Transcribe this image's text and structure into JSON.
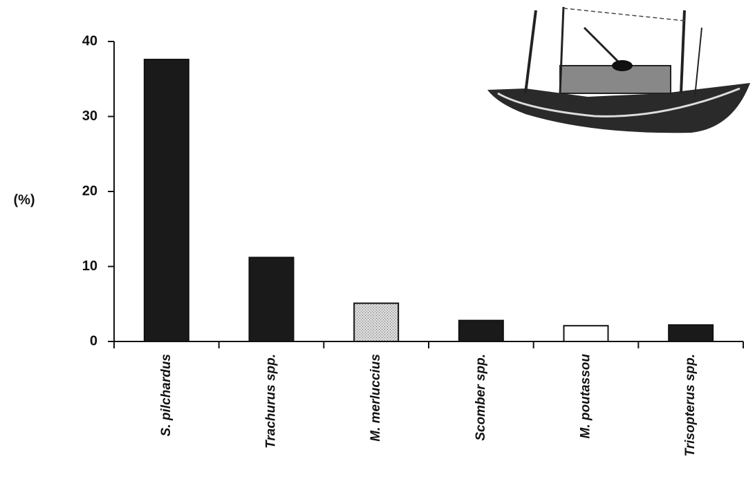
{
  "chart_data": {
    "type": "bar",
    "y_label": "(%)",
    "categories": [
      "S. pilchardus",
      "Trachurus spp.",
      "M. merluccius",
      "Scomber spp.",
      "M. poutassou",
      "Trisopterus spp."
    ],
    "values": [
      37.6,
      11.2,
      5.1,
      2.8,
      2.1,
      2.2
    ],
    "colors": [
      "#1a1a1a",
      "#1a1a1a",
      "#c4c4c4",
      "#1a1a1a",
      "#ffffff",
      "#1a1a1a"
    ],
    "ylim": [
      0,
      40
    ],
    "yticks": [
      0,
      10,
      20,
      30,
      40
    ]
  }
}
